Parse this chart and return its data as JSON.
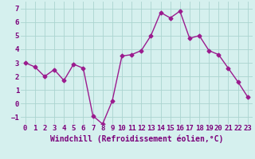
{
  "x": [
    0,
    1,
    2,
    3,
    4,
    5,
    6,
    7,
    8,
    9,
    10,
    11,
    12,
    13,
    14,
    15,
    16,
    17,
    18,
    19,
    20,
    21,
    22,
    23
  ],
  "y": [
    3.0,
    2.7,
    2.0,
    2.5,
    1.7,
    2.9,
    2.6,
    -0.9,
    -1.5,
    0.2,
    3.5,
    3.6,
    3.9,
    5.0,
    6.7,
    6.3,
    6.8,
    4.8,
    5.0,
    3.9,
    3.6,
    2.6,
    1.6,
    0.5
  ],
  "line_color": "#9b1b8e",
  "marker": "D",
  "markersize": 2.5,
  "linewidth": 1.0,
  "xlabel": "Windchill (Refroidissement éolien,°C)",
  "xlim": [
    -0.5,
    23.5
  ],
  "ylim": [
    -1.5,
    7.5
  ],
  "yticks": [
    -1,
    0,
    1,
    2,
    3,
    4,
    5,
    6,
    7
  ],
  "xticks": [
    0,
    1,
    2,
    3,
    4,
    5,
    6,
    7,
    8,
    9,
    10,
    11,
    12,
    13,
    14,
    15,
    16,
    17,
    18,
    19,
    20,
    21,
    22,
    23
  ],
  "bg_color": "#d5f0ee",
  "grid_color": "#aad4d0",
  "tick_color": "#7b007b",
  "xlabel_color": "#7b007b",
  "xlabel_fontsize": 7.0,
  "tick_fontsize": 6.5
}
